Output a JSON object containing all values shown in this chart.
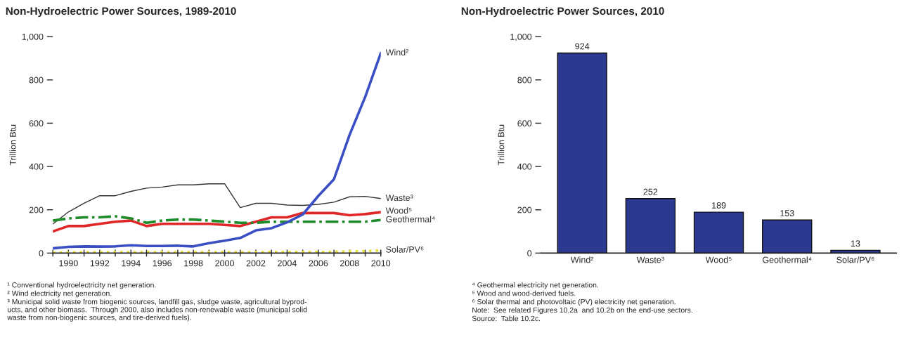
{
  "chart_data": [
    {
      "type": "line",
      "title": "Non-Hydroelectric Power Sources, 1989-2010",
      "ylabel": "Trillion Btu",
      "x": [
        1989,
        1990,
        1991,
        1992,
        1993,
        1994,
        1995,
        1996,
        1997,
        1998,
        1999,
        2000,
        2001,
        2002,
        2003,
        2004,
        2005,
        2006,
        2007,
        2008,
        2009,
        2010
      ],
      "series": [
        {
          "name": "Waste³",
          "color": "#333333",
          "values": [
            134,
            190,
            230,
            265,
            265,
            285,
            300,
            305,
            315,
            315,
            320,
            320,
            210,
            230,
            230,
            222,
            220,
            225,
            235,
            260,
            262,
            252
          ]
        },
        {
          "name": "Wood⁵",
          "color": "#e02626",
          "values": [
            100,
            125,
            125,
            135,
            145,
            150,
            125,
            135,
            135,
            135,
            135,
            130,
            125,
            145,
            165,
            165,
            185,
            185,
            185,
            175,
            180,
            189
          ]
        },
        {
          "name": "Geothermal⁴",
          "color": "#1f8a2a",
          "line_style": "dashed",
          "values": [
            150,
            160,
            165,
            165,
            170,
            160,
            140,
            150,
            155,
            155,
            150,
            145,
            140,
            140,
            145,
            145,
            145,
            145,
            145,
            145,
            145,
            153
          ]
        },
        {
          "name": "Solar/PV⁶",
          "color": "#e8e23c",
          "line_style": "dotted",
          "values": [
            3,
            3,
            4,
            4,
            4,
            4,
            4,
            4,
            4,
            4,
            4,
            4,
            4,
            4,
            5,
            5,
            5,
            5,
            6,
            8,
            9,
            13
          ]
        },
        {
          "name": "Wind²",
          "color": "#3b4fc4",
          "values": [
            22,
            29,
            31,
            30,
            31,
            36,
            33,
            33,
            34,
            31,
            46,
            57,
            70,
            105,
            115,
            142,
            178,
            264,
            341,
            546,
            721,
            924
          ]
        }
      ],
      "xlim": [
        1989,
        2010
      ],
      "xticks": [
        {
          "value": 1989,
          "label": null
        },
        1990,
        {
          "value": 1991,
          "label": null
        },
        1992,
        {
          "value": 1993,
          "label": null
        },
        1994,
        {
          "value": 1995,
          "label": null
        },
        1996,
        {
          "value": 1997,
          "label": null
        },
        1998,
        {
          "value": 1999,
          "label": null
        },
        2000,
        {
          "value": 2001,
          "label": null
        },
        2002,
        {
          "value": 2003,
          "label": null
        },
        2004,
        {
          "value": 2005,
          "label": null
        },
        2006,
        {
          "value": 2007,
          "label": null
        },
        2008,
        {
          "value": 2009,
          "label": null
        },
        2010
      ],
      "ylim": [
        0,
        1000
      ],
      "yticks": [
        0,
        200,
        400,
        600,
        800,
        {
          "value": 1000,
          "label": "1,000"
        }
      ],
      "grid": false,
      "legend": false,
      "annotations": [
        "¹ Conventional hydroelectricity net generation.",
        "² Wind electricity net generation.",
        "³ Municipal solid waste from biogenic sources, landfill gas, sludge waste, agricultural byprod-\nucts, and other biomass.  Through 2000, also includes non-renewable waste (municipal solid\nwaste from non-biogenic sources, and tire-derived fuels)."
      ]
    },
    {
      "type": "bar",
      "title": "Non-Hydroelectric Power Sources, 2010",
      "ylabel": "Trillion Btu",
      "categories": [
        "Wind²",
        "Waste³",
        "Wood⁵",
        "Geothermal⁴",
        "Solar/PV⁶"
      ],
      "values": [
        924,
        252,
        189,
        153,
        13
      ],
      "color": "#2b3990",
      "data_labels": true,
      "ylim": [
        0,
        1000
      ],
      "yticks": [
        0,
        200,
        400,
        600,
        800,
        {
          "value": 1000,
          "label": "1,000"
        }
      ],
      "grid": false,
      "legend": false,
      "annotations": [
        "⁴ Geothermal electricity net generation.",
        "⁵ Wood and wood-derived fuels.",
        "⁶ Solar thermal and photovoltaic (PV) electricity net generation.",
        "Note:  See related Figures 10.2a  and 10.2b on the end-use sectors.",
        "Source:  Table 10.2c."
      ]
    }
  ]
}
